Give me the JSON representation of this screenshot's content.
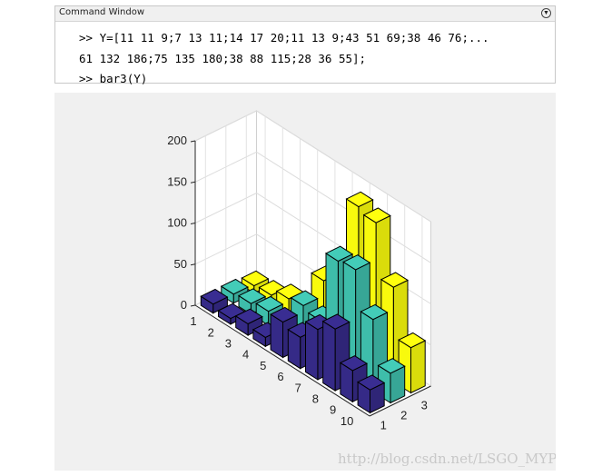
{
  "command_window": {
    "title": "Command Window",
    "menu_icon": "chevron-down-circle-icon",
    "lines": [
      {
        "prompt": ">>",
        "text": " Y=[11 11 9;7 13 11;14 17 20;11 13 9;43 51 69;38 46 76;..."
      },
      {
        "prompt": "",
        "text": "61 132 186;75 135 180;38 88 115;28 36 55];"
      },
      {
        "prompt": ">>",
        "text": " bar3(Y)"
      }
    ]
  },
  "watermark": "http://blog.csdn.net/LSGO_MYP",
  "colors": {
    "series": [
      "#352a87",
      "#3ebdaa",
      "#f8fa0d"
    ],
    "figure_bg": "#f0f0f0",
    "axes_bg": "#ffffff"
  },
  "chart_data": {
    "type": "bar",
    "subtype": "bar3",
    "rows": [
      "1",
      "2",
      "3",
      "4",
      "5",
      "6",
      "7",
      "8",
      "9",
      "10"
    ],
    "columns": [
      "1",
      "2",
      "3"
    ],
    "matrix": [
      [
        11,
        11,
        9
      ],
      [
        7,
        13,
        11
      ],
      [
        14,
        17,
        20
      ],
      [
        11,
        13,
        9
      ],
      [
        43,
        51,
        69
      ],
      [
        38,
        46,
        76
      ],
      [
        61,
        132,
        186
      ],
      [
        75,
        135,
        180
      ],
      [
        38,
        88,
        115
      ],
      [
        28,
        36,
        55
      ]
    ],
    "zticks": [
      "0",
      "50",
      "100",
      "150",
      "200"
    ],
    "zlim": [
      0,
      200
    ],
    "grid": true,
    "title": "",
    "xlabel": "",
    "ylabel": "",
    "zlabel": ""
  }
}
